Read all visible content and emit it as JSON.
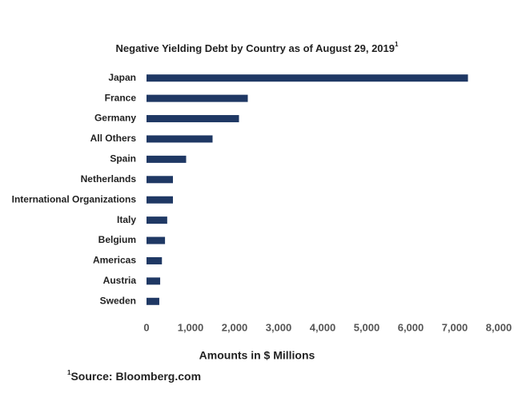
{
  "chart_data": {
    "type": "bar",
    "orientation": "horizontal",
    "title": "Negative Yielding Debt by Country as of August 29, 2019",
    "title_note": "1",
    "x_label": "Amounts in $ Millions",
    "source_note": "1",
    "source": "Source: Bloomberg.com",
    "categories": [
      "Japan",
      "France",
      "Germany",
      "All Others",
      "Spain",
      "Netherlands",
      "International Organizations",
      "Italy",
      "Belgium",
      "Americas",
      "Austria",
      "Sweden"
    ],
    "values": [
      7300,
      2300,
      2100,
      1500,
      900,
      600,
      600,
      470,
      420,
      350,
      310,
      290
    ],
    "color": "#1f3864",
    "xlim": [
      0,
      8000
    ],
    "xticks": [
      0,
      {
        "value": 1000,
        "label": "1,000"
      },
      {
        "value": 2000,
        "label": "2,000"
      },
      {
        "value": 3000,
        "label": "3,000"
      },
      {
        "value": 4000,
        "label": "4,000"
      },
      {
        "value": 5000,
        "label": "5,000"
      },
      {
        "value": 6000,
        "label": "6,000"
      },
      {
        "value": 7000,
        "label": "7,000"
      },
      {
        "value": 8000,
        "label": "8,000"
      }
    ],
    "grid": false
  }
}
